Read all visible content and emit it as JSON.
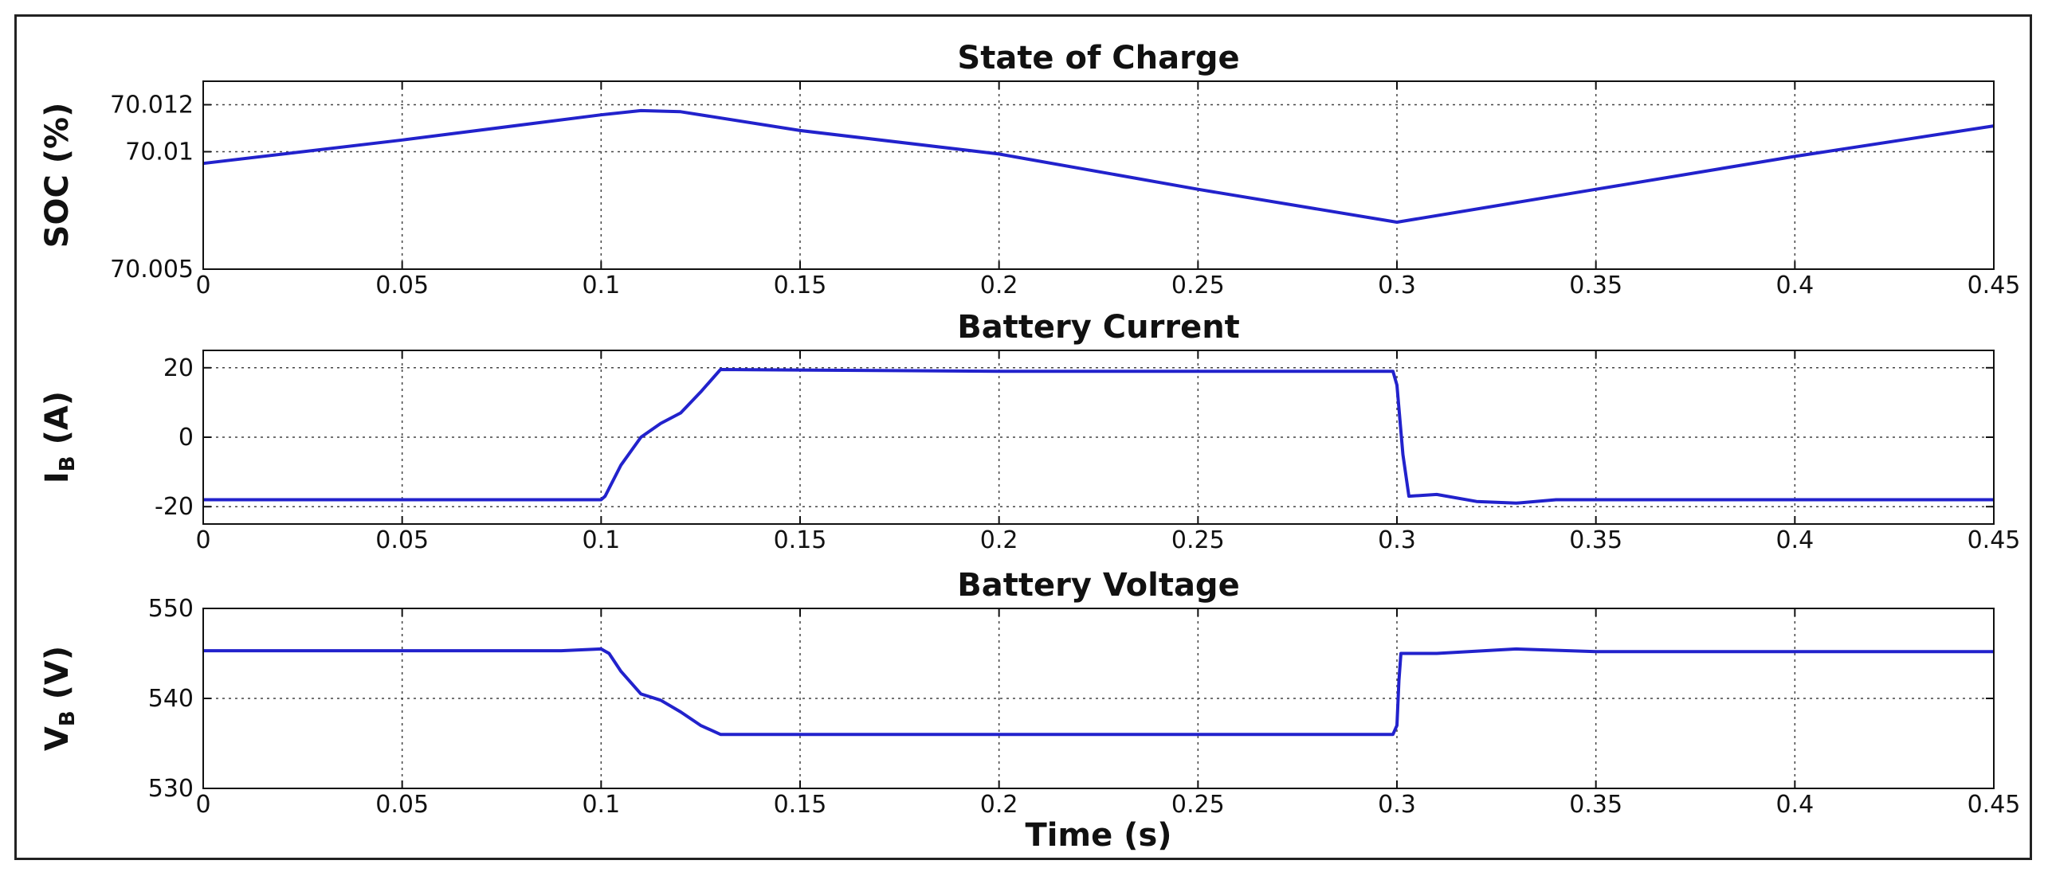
{
  "chart_data": [
    {
      "type": "line",
      "title": "State of Charge",
      "ylabel": "SOC (%)",
      "xlabel": "",
      "xlim": [
        0,
        0.45
      ],
      "ylim": [
        70.005,
        70.013
      ],
      "xticks": [
        0,
        0.05,
        0.1,
        0.15,
        0.2,
        0.25,
        0.3,
        0.35,
        0.4,
        0.45
      ],
      "xtick_labels": [
        "0",
        "0.05",
        "0.1",
        "0.15",
        "0.2",
        "0.25",
        "0.3",
        "0.35",
        "0.4",
        "0.45"
      ],
      "yticks": [
        70.005,
        70.01,
        70.012
      ],
      "ytick_labels": [
        "70.005",
        "70.01",
        "70.012"
      ],
      "grid": true,
      "color": "#2222cc",
      "series": [
        {
          "x": [
            0,
            0.05,
            0.1,
            0.11,
            0.12,
            0.15,
            0.2,
            0.25,
            0.3,
            0.35,
            0.4,
            0.45
          ],
          "y": [
            70.0095,
            70.0105,
            70.01157,
            70.01175,
            70.0117,
            70.0109,
            70.0099,
            70.0084,
            70.007,
            70.0084,
            70.0098,
            70.0111
          ]
        }
      ]
    },
    {
      "type": "line",
      "title": "Battery Current",
      "ylabel": "I",
      "ylabel_sub": "B",
      "ylabel_unit": " (A)",
      "xlabel": "",
      "xlim": [
        0,
        0.45
      ],
      "ylim": [
        -25,
        25
      ],
      "xticks": [
        0,
        0.05,
        0.1,
        0.15,
        0.2,
        0.25,
        0.3,
        0.35,
        0.4,
        0.45
      ],
      "xtick_labels": [
        "0",
        "0.05",
        "0.1",
        "0.15",
        "0.2",
        "0.25",
        "0.3",
        "0.35",
        "0.4",
        "0.45"
      ],
      "yticks": [
        -20,
        0,
        20
      ],
      "ytick_labels": [
        "-20",
        "0",
        "20"
      ],
      "grid": true,
      "color": "#2222cc",
      "series": [
        {
          "x": [
            0,
            0.1,
            0.101,
            0.105,
            0.11,
            0.115,
            0.12,
            0.125,
            0.13,
            0.2,
            0.299,
            0.3,
            0.3015,
            0.303,
            0.31,
            0.32,
            0.33,
            0.34,
            0.35,
            0.4,
            0.45
          ],
          "y": [
            -18,
            -18,
            -17,
            -8,
            0,
            4,
            7,
            13,
            19.5,
            19,
            19,
            15,
            -5,
            -17,
            -16.5,
            -18.5,
            -19,
            -18,
            -18,
            -18,
            -18
          ]
        }
      ]
    },
    {
      "type": "line",
      "title": "Battery Voltage",
      "ylabel": "V",
      "ylabel_sub": "B",
      "ylabel_unit": " (V)",
      "xlabel": "Time (s)",
      "xlim": [
        0,
        0.45
      ],
      "ylim": [
        530,
        550
      ],
      "xticks": [
        0,
        0.05,
        0.1,
        0.15,
        0.2,
        0.25,
        0.3,
        0.35,
        0.4,
        0.45
      ],
      "xtick_labels": [
        "0",
        "0.05",
        "0.1",
        "0.15",
        "0.2",
        "0.25",
        "0.3",
        "0.35",
        "0.4",
        "0.45"
      ],
      "yticks": [
        530,
        540,
        550
      ],
      "ytick_labels": [
        "530",
        "540",
        "550"
      ],
      "grid": true,
      "color": "#2222cc",
      "series": [
        {
          "x": [
            0,
            0.09,
            0.1,
            0.102,
            0.105,
            0.11,
            0.115,
            0.12,
            0.125,
            0.13,
            0.2,
            0.299,
            0.3,
            0.3005,
            0.301,
            0.31,
            0.33,
            0.35,
            0.4,
            0.45
          ],
          "y": [
            545.3,
            545.3,
            545.5,
            545,
            543,
            540.5,
            539.8,
            538.5,
            537,
            536,
            536,
            536,
            537,
            542,
            545,
            545,
            545.5,
            545.2,
            545.2,
            545.2
          ]
        }
      ]
    }
  ]
}
